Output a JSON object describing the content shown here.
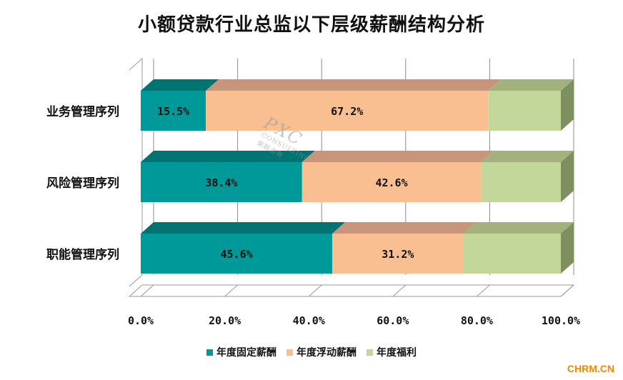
{
  "chart_data": {
    "type": "bar",
    "orientation": "horizontal",
    "stacked": true,
    "percent_stacked": true,
    "three_d": true,
    "title": "小额贷款行业总监以下层级薪酬结构分析",
    "categories": [
      "业务管理序列",
      "风险管理序列",
      "职能管理序列"
    ],
    "series": [
      {
        "name": "年度固定薪酬",
        "values": [
          15.5,
          38.4,
          45.6
        ],
        "labels": [
          "15.5%",
          "38.4%",
          "45.6%"
        ],
        "color": "#009999",
        "top_color": "#007373",
        "side_color": "#006666"
      },
      {
        "name": "年度浮动薪酬",
        "values": [
          67.2,
          42.6,
          31.2
        ],
        "labels": [
          "67.2%",
          "42.6%",
          "31.2%"
        ],
        "color": "#F9BF91",
        "top_color": "#C8957A",
        "side_color": "#B8856A"
      },
      {
        "name": "年度福利",
        "values": [
          17.3,
          19.0,
          23.2
        ],
        "labels": [
          "",
          "",
          ""
        ],
        "color": "#C4D79B",
        "top_color": "#A3B27D",
        "side_color": "#7F9060"
      }
    ],
    "x_ticks": [
      "0.0%",
      "20.0%",
      "40.0%",
      "60.0%",
      "80.0%",
      "100.0%"
    ],
    "xlim": [
      0,
      100
    ],
    "grid": true,
    "legend": "bottom"
  },
  "watermark": {
    "main": "PXC",
    "sub": "CONSULTING",
    "cn": "荣联咨询"
  },
  "source_mark": "CHRM.CN"
}
